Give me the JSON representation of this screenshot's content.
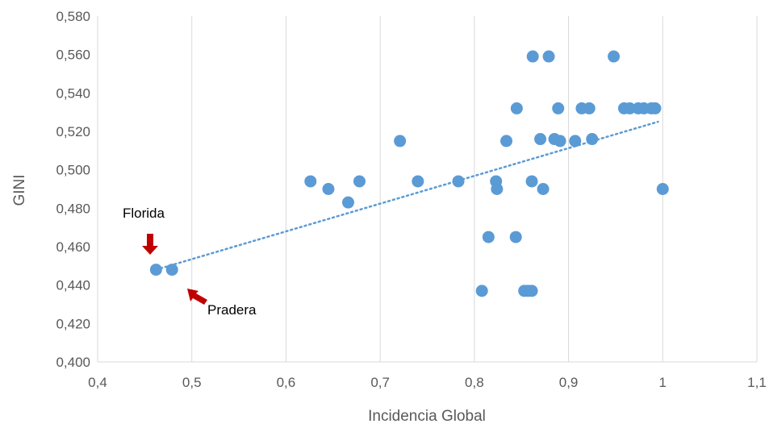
{
  "chart_data": {
    "type": "scatter",
    "title": "",
    "xlabel": "Incidencia Global",
    "ylabel": "GINI",
    "xlim": [
      0.4,
      1.1
    ],
    "ylim": [
      0.4,
      0.58
    ],
    "x_ticks": [
      "0,4",
      "0,5",
      "0,6",
      "0,7",
      "0,8",
      "0,9",
      "1",
      "1,1"
    ],
    "y_ticks": [
      "0,400",
      "0,420",
      "0,440",
      "0,460",
      "0,480",
      "0,500",
      "0,520",
      "0,540",
      "0,560",
      "0,580"
    ],
    "grid": "vertical",
    "series": [
      {
        "color": "#5b9bd5",
        "points": [
          {
            "x": 0.462,
            "y": 0.448
          },
          {
            "x": 0.479,
            "y": 0.448
          },
          {
            "x": 0.626,
            "y": 0.494
          },
          {
            "x": 0.645,
            "y": 0.49
          },
          {
            "x": 0.666,
            "y": 0.483
          },
          {
            "x": 0.678,
            "y": 0.494
          },
          {
            "x": 0.721,
            "y": 0.515
          },
          {
            "x": 0.74,
            "y": 0.494
          },
          {
            "x": 0.783,
            "y": 0.494
          },
          {
            "x": 0.808,
            "y": 0.437
          },
          {
            "x": 0.815,
            "y": 0.465
          },
          {
            "x": 0.823,
            "y": 0.494
          },
          {
            "x": 0.824,
            "y": 0.49
          },
          {
            "x": 0.834,
            "y": 0.515
          },
          {
            "x": 0.844,
            "y": 0.465
          },
          {
            "x": 0.845,
            "y": 0.532
          },
          {
            "x": 0.853,
            "y": 0.437
          },
          {
            "x": 0.857,
            "y": 0.437
          },
          {
            "x": 0.861,
            "y": 0.437
          },
          {
            "x": 0.861,
            "y": 0.494
          },
          {
            "x": 0.862,
            "y": 0.559
          },
          {
            "x": 0.87,
            "y": 0.516
          },
          {
            "x": 0.873,
            "y": 0.49
          },
          {
            "x": 0.879,
            "y": 0.559
          },
          {
            "x": 0.885,
            "y": 0.516
          },
          {
            "x": 0.889,
            "y": 0.532
          },
          {
            "x": 0.891,
            "y": 0.515
          },
          {
            "x": 0.907,
            "y": 0.515
          },
          {
            "x": 0.914,
            "y": 0.532
          },
          {
            "x": 0.922,
            "y": 0.532
          },
          {
            "x": 0.925,
            "y": 0.516
          },
          {
            "x": 0.948,
            "y": 0.559
          },
          {
            "x": 0.959,
            "y": 0.532
          },
          {
            "x": 0.965,
            "y": 0.532
          },
          {
            "x": 0.974,
            "y": 0.532
          },
          {
            "x": 0.98,
            "y": 0.532
          },
          {
            "x": 0.988,
            "y": 0.532
          },
          {
            "x": 0.992,
            "y": 0.532
          },
          {
            "x": 1.0,
            "y": 0.49
          }
        ]
      }
    ],
    "trendline": {
      "style": "dotted linear",
      "color": "#5b9bd5",
      "from": {
        "x": 0.462,
        "y": 0.448
      },
      "to": {
        "x": 0.995,
        "y": 0.525
      }
    },
    "annotations": [
      {
        "text": "Florida",
        "arrow_color": "#c00000",
        "arrow_direction": "down"
      },
      {
        "text": "Pradera",
        "arrow_color": "#c00000",
        "arrow_direction": "up-left"
      }
    ]
  }
}
